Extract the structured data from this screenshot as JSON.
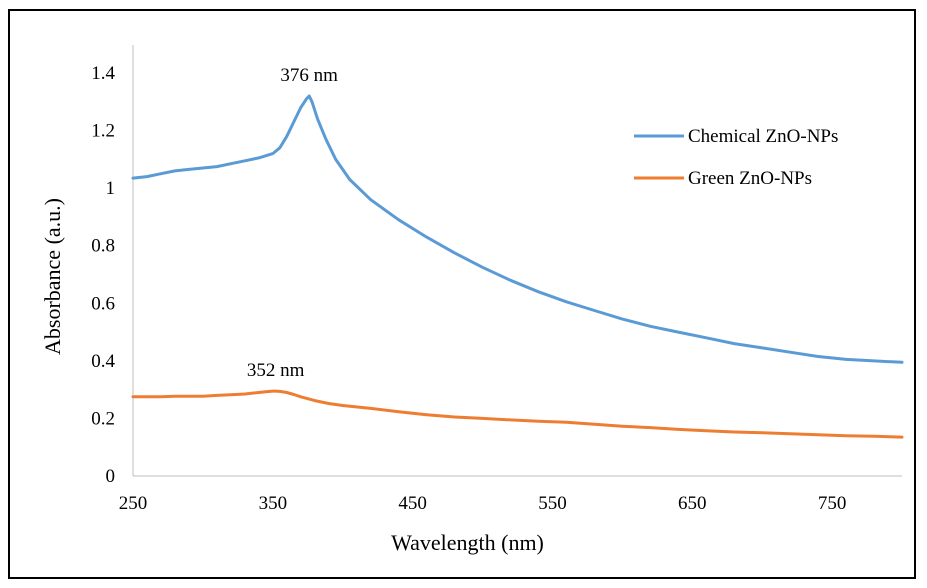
{
  "chart_data": {
    "type": "line",
    "title": "",
    "xlabel": "Wavelength (nm)",
    "ylabel": "Absorbance (a.u.)",
    "xlim": [
      250,
      800
    ],
    "ylim": [
      0,
      1.4
    ],
    "x_ticks": [
      "250",
      "350",
      "450",
      "550",
      "650",
      "750"
    ],
    "y_ticks": [
      "0",
      "0.2",
      "0.4",
      "0.6",
      "0.8",
      "1",
      "1.2",
      "1.4"
    ],
    "grid": false,
    "legend_position": "right",
    "annotations": [
      {
        "text": "376 nm",
        "x": 376,
        "y": 1.32
      },
      {
        "text": "352 nm",
        "x": 352,
        "y": 0.295
      }
    ],
    "series": [
      {
        "name": "Chemical ZnO-NPs",
        "color": "#5b9bd5",
        "x": [
          250,
          260,
          270,
          280,
          290,
          300,
          310,
          320,
          330,
          340,
          350,
          355,
          360,
          365,
          370,
          374,
          376,
          378,
          382,
          388,
          395,
          405,
          420,
          440,
          460,
          480,
          500,
          520,
          540,
          560,
          580,
          600,
          620,
          640,
          660,
          680,
          700,
          720,
          740,
          760,
          780,
          800
        ],
        "values": [
          1.035,
          1.04,
          1.05,
          1.06,
          1.065,
          1.07,
          1.075,
          1.085,
          1.095,
          1.105,
          1.12,
          1.14,
          1.18,
          1.23,
          1.28,
          1.31,
          1.32,
          1.3,
          1.24,
          1.17,
          1.1,
          1.03,
          0.96,
          0.89,
          0.83,
          0.775,
          0.725,
          0.68,
          0.64,
          0.605,
          0.575,
          0.545,
          0.52,
          0.5,
          0.48,
          0.46,
          0.445,
          0.43,
          0.415,
          0.405,
          0.4,
          0.395
        ]
      },
      {
        "name": "Green ZnO-NPs",
        "color": "#ed7d31",
        "x": [
          250,
          260,
          270,
          280,
          290,
          300,
          310,
          320,
          330,
          340,
          345,
          350,
          352,
          355,
          360,
          365,
          370,
          380,
          390,
          400,
          420,
          440,
          460,
          480,
          500,
          520,
          540,
          560,
          580,
          600,
          620,
          640,
          660,
          680,
          700,
          720,
          740,
          760,
          780,
          800
        ],
        "values": [
          0.275,
          0.275,
          0.275,
          0.277,
          0.277,
          0.277,
          0.28,
          0.282,
          0.285,
          0.29,
          0.293,
          0.295,
          0.295,
          0.294,
          0.29,
          0.283,
          0.275,
          0.262,
          0.252,
          0.245,
          0.235,
          0.223,
          0.213,
          0.205,
          0.2,
          0.195,
          0.19,
          0.187,
          0.18,
          0.173,
          0.168,
          0.162,
          0.157,
          0.153,
          0.15,
          0.147,
          0.143,
          0.14,
          0.138,
          0.135
        ]
      }
    ]
  }
}
